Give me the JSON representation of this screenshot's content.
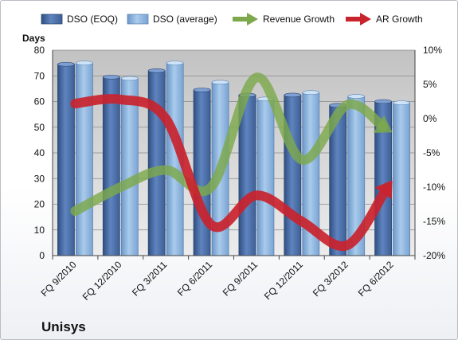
{
  "chart_data": {
    "type": "bar",
    "title": "",
    "caption": "Unisys",
    "ylabel_left": "Days",
    "categories": [
      "FQ 9/2010",
      "FQ 12/2010",
      "FQ 3/2011",
      "FQ 6/2011",
      "FQ 9/2011",
      "FQ 12/2011",
      "FQ 3/2012",
      "FQ 6/2012"
    ],
    "ylim_left": [
      0,
      80
    ],
    "yticks_left": [
      "0",
      "10",
      "20",
      "30",
      "40",
      "50",
      "60",
      "70",
      "80"
    ],
    "ylim_right": [
      -20,
      10
    ],
    "yticks_right": [
      "-20%",
      "-15%",
      "-10%",
      "-5%",
      "0%",
      "5%",
      "10%"
    ],
    "grid": true,
    "legend_position": "top",
    "series": [
      {
        "name": "DSO (EOQ)",
        "type": "bar",
        "axis": "left",
        "color": "#4a6ea8",
        "values": [
          74.5,
          69.5,
          72,
          64.5,
          62.5,
          62.5,
          58.5,
          60
        ]
      },
      {
        "name": "DSO (average)",
        "type": "bar",
        "axis": "left",
        "color": "#8ab4e0",
        "values": [
          75,
          69,
          75,
          67.5,
          61,
          63.5,
          62,
          59.5
        ]
      },
      {
        "name": "Revenue Growth",
        "type": "line",
        "axis": "right",
        "unit": "%",
        "color": "#7da84c",
        "values": [
          -13.5,
          -10,
          -7.5,
          -10,
          6,
          -6,
          2,
          -2
        ]
      },
      {
        "name": "AR Growth",
        "type": "line",
        "axis": "right",
        "unit": "%",
        "color": "#c9232e",
        "values": [
          2.2,
          2.8,
          0,
          -15.5,
          -11.2,
          -15,
          -18.5,
          -9
        ]
      }
    ]
  }
}
